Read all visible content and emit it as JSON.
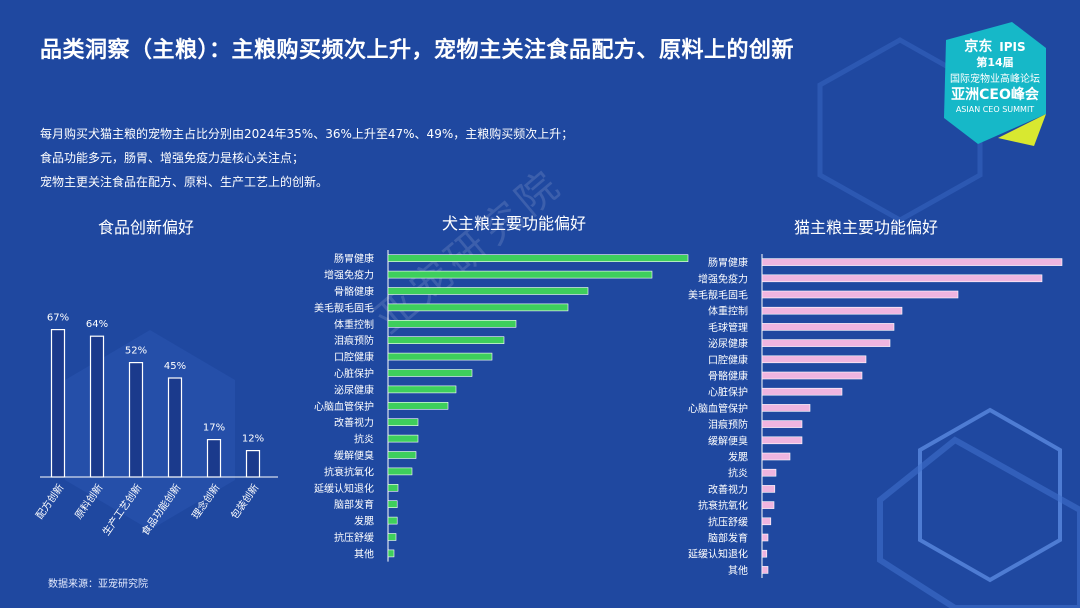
{
  "title": "品类洞察（主粮）：主粮购买频次上升，宠物主关注食品配方、原料上的创新",
  "bullets": [
    "每月购买犬猫主粮的宠物主占比分别由2024年35%、36%上升至47%、49%，主粮购买频次上升；",
    "食品功能多元，肠胃、增强免疫力是核心关注点；",
    "宠物主更关注食品在配方、原料、生产工艺上的创新。"
  ],
  "source": "数据来源：亚宠研究院",
  "watermark": "亚宠研究院",
  "logo": {
    "brand": "京东",
    "edition": "第14届",
    "ipis": "IPIS",
    "line1": "国际宠物业高峰论坛",
    "line2": "亚洲CEO峰会",
    "line3": "ASIAN CEO SUMMIT"
  },
  "colors": {
    "background": "#1f48a0",
    "bar_blue": "#1b3a8c",
    "bar_green": "#3ecf5c",
    "bar_pink": "#efb5e0"
  },
  "chart_data": [
    {
      "type": "bar",
      "title": "食品创新偏好",
      "categories": [
        "配方创新",
        "原料创新",
        "生产工艺创新",
        "食品功能创新",
        "理念创新",
        "包装创新"
      ],
      "values": [
        67,
        64,
        52,
        45,
        17,
        12
      ],
      "labels": [
        "67%",
        "64%",
        "52%",
        "45%",
        "17%",
        "12%"
      ],
      "ylim": [
        0,
        100
      ]
    },
    {
      "type": "bar",
      "orientation": "horizontal",
      "title": "犬主粮主要功能偏好",
      "categories": [
        "肠胃健康",
        "增强免疫力",
        "骨骼健康",
        "美毛靓毛固毛",
        "体重控制",
        "泪痕预防",
        "口腔健康",
        "心脏保护",
        "泌尿健康",
        "心脑血管保护",
        "改善视力",
        "抗炎",
        "缓解便臭",
        "抗衰抗氧化",
        "延缓认知退化",
        "脑部发育",
        "发腮",
        "抗压舒缓",
        "其他"
      ],
      "values": [
        75,
        66,
        50,
        45,
        32,
        29,
        26,
        21,
        17,
        15,
        7.5,
        7.5,
        7,
        6,
        2.5,
        2.3,
        2.3,
        2,
        1.5
      ],
      "xlim": [
        0,
        80
      ]
    },
    {
      "type": "bar",
      "orientation": "horizontal",
      "title": "猫主粮主要功能偏好",
      "categories": [
        "肠胃健康",
        "增强免疫力",
        "美毛靓毛固毛",
        "体重控制",
        "毛球管理",
        "泌尿健康",
        "口腔健康",
        "骨骼健康",
        "心脏保护",
        "心脑血管保护",
        "泪痕预防",
        "缓解便臭",
        "发腮",
        "抗炎",
        "改善视力",
        "抗衰抗氧化",
        "抗压舒缓",
        "脑部发育",
        "延缓认知退化",
        "其他"
      ],
      "values": [
        75,
        70,
        49,
        35,
        33,
        32,
        26,
        25,
        20,
        12,
        10,
        10,
        7,
        3.5,
        3.2,
        3,
        2.2,
        1.5,
        1.2,
        1.5
      ],
      "xlim": [
        0,
        80
      ]
    }
  ]
}
